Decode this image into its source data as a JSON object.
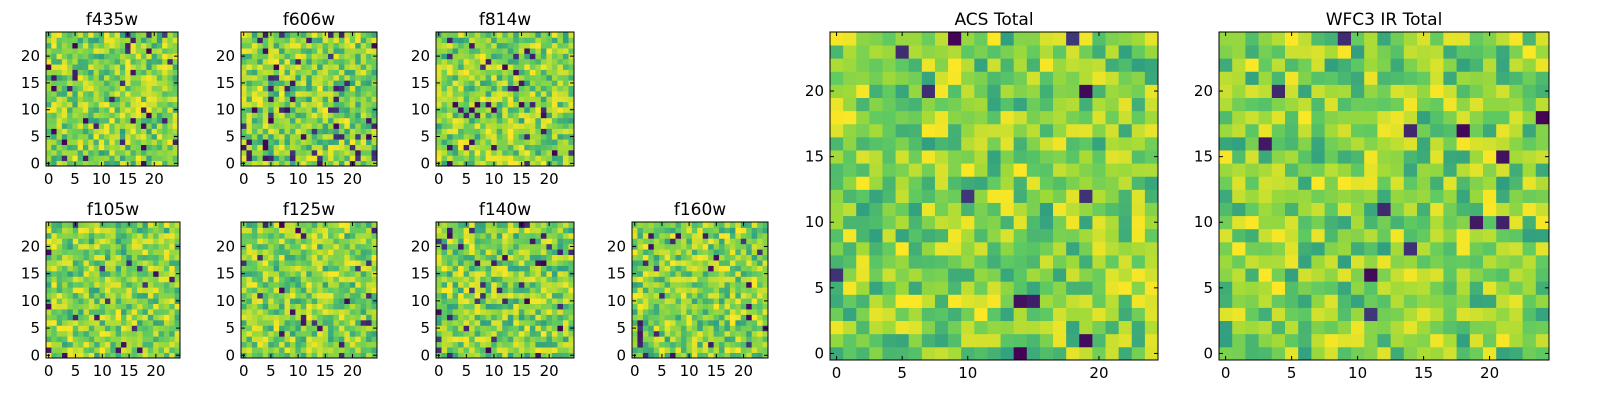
{
  "chart_data": [
    {
      "id": "f435w",
      "type": "heatmap",
      "title": "f435w",
      "xticks": [
        0,
        5,
        10,
        15,
        20
      ],
      "yticks": [
        0,
        5,
        10,
        15,
        20
      ],
      "xlim": [
        0,
        24
      ],
      "ylim": [
        0,
        24
      ],
      "size": 25,
      "seed": 11,
      "dark_fraction": 0.05
    },
    {
      "id": "f606w",
      "type": "heatmap",
      "title": "f606w",
      "xticks": [
        0,
        5,
        10,
        15,
        20
      ],
      "yticks": [
        0,
        5,
        10,
        15,
        20
      ],
      "xlim": [
        0,
        24
      ],
      "ylim": [
        0,
        24
      ],
      "size": 25,
      "seed": 23,
      "dark_fraction": 0.08
    },
    {
      "id": "f814w",
      "type": "heatmap",
      "title": "f814w",
      "xticks": [
        0,
        5,
        10,
        15,
        20
      ],
      "yticks": [
        0,
        5,
        10,
        15,
        20
      ],
      "xlim": [
        0,
        24
      ],
      "ylim": [
        0,
        24
      ],
      "size": 25,
      "seed": 37,
      "dark_fraction": 0.06
    },
    {
      "id": "f105w",
      "type": "heatmap",
      "title": "f105w",
      "xticks": [
        0,
        5,
        10,
        15,
        20
      ],
      "yticks": [
        0,
        5,
        10,
        15,
        20
      ],
      "xlim": [
        0,
        24
      ],
      "ylim": [
        0,
        24
      ],
      "size": 25,
      "seed": 41,
      "dark_fraction": 0.03
    },
    {
      "id": "f125w",
      "type": "heatmap",
      "title": "f125w",
      "xticks": [
        0,
        5,
        10,
        15,
        20
      ],
      "yticks": [
        0,
        5,
        10,
        15,
        20
      ],
      "xlim": [
        0,
        24
      ],
      "ylim": [
        0,
        24
      ],
      "size": 25,
      "seed": 53,
      "dark_fraction": 0.04
    },
    {
      "id": "f140w",
      "type": "heatmap",
      "title": "f140w",
      "xticks": [
        0,
        5,
        10,
        15,
        20
      ],
      "yticks": [
        0,
        5,
        10,
        15,
        20
      ],
      "xlim": [
        0,
        24
      ],
      "ylim": [
        0,
        24
      ],
      "size": 25,
      "seed": 67,
      "dark_fraction": 0.05
    },
    {
      "id": "f160w",
      "type": "heatmap",
      "title": "f160w",
      "xticks": [
        0,
        5,
        10,
        15,
        20
      ],
      "yticks": [
        0,
        5,
        10,
        15,
        20
      ],
      "xlim": [
        0,
        24
      ],
      "ylim": [
        0,
        24
      ],
      "size": 25,
      "seed": 79,
      "dark_fraction": 0.05
    },
    {
      "id": "acs",
      "type": "heatmap",
      "title": "ACS Total",
      "xticks": [
        0,
        5,
        10,
        20
      ],
      "yticks": [
        0,
        5,
        10,
        15,
        20
      ],
      "xlim": [
        0,
        24
      ],
      "ylim": [
        0,
        24
      ],
      "size": 25,
      "seed": 97,
      "dark_fraction": 0.02
    },
    {
      "id": "wfc3",
      "type": "heatmap",
      "title": "WFC3 IR Total",
      "xticks": [
        0,
        5,
        10,
        15,
        20
      ],
      "yticks": [
        0,
        5,
        10,
        15,
        20
      ],
      "xlim": [
        0,
        24
      ],
      "ylim": [
        0,
        24
      ],
      "size": 25,
      "seed": 101,
      "dark_fraction": 0.02
    }
  ],
  "colormap": [
    "#440154",
    "#3b528b",
    "#21918c",
    "#5ec962",
    "#a0da39",
    "#fde725"
  ]
}
